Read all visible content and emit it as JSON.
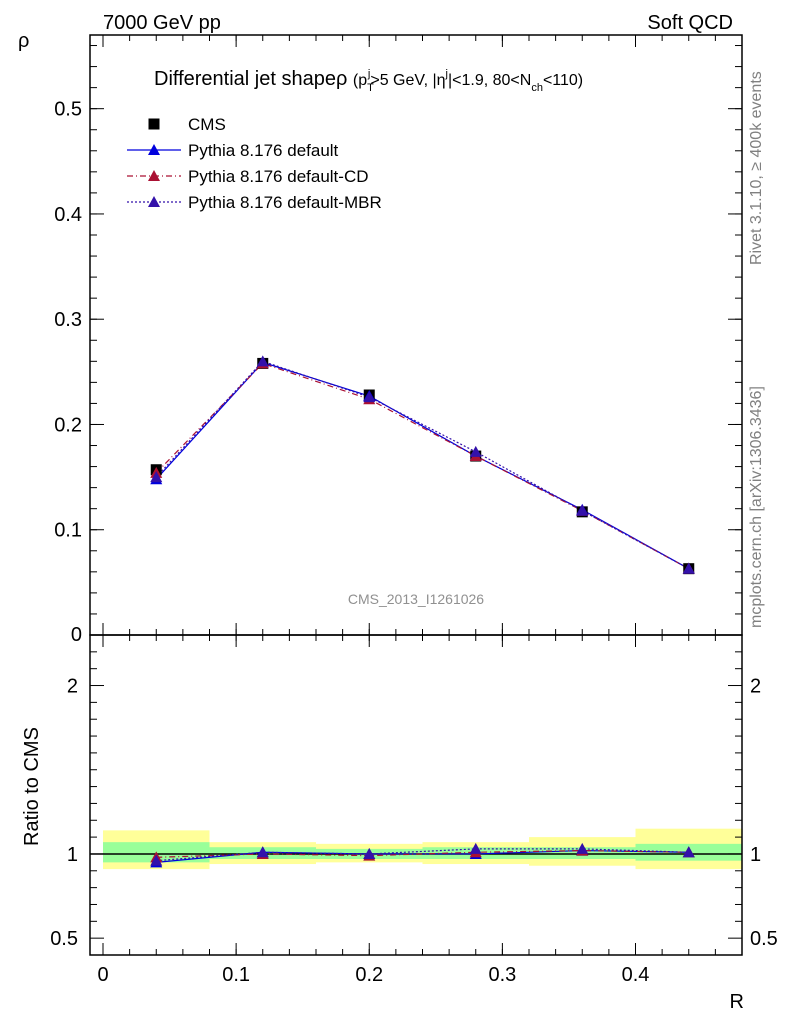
{
  "header": {
    "left": "7000 GeV pp",
    "right": "Soft QCD"
  },
  "side_labels": {
    "rivet": "Rivet 3.1.10, ≥ 400k events",
    "mcplots": "mcplots.cern.ch [arXiv:1306.3436]"
  },
  "chart_data": {
    "type": "line",
    "title": "Differential jet shape ρ (p_T^j>5 GeV, |η^j|<1.9, 80<N_ch<110)",
    "title_parts": {
      "main": "Differential jet shape",
      "rho": "ρ",
      "open": "(p",
      "sub_t": "T",
      "sup_j1": "j",
      "mid1": ">5 GeV, |η",
      "sup_j2": "j",
      "mid2": "|<1.9, 80<N",
      "sub_ch": "ch",
      "end": "<110)"
    },
    "analysis_id": "CMS_2013_I1261026",
    "xlabel": "R",
    "ylabel": "ρ",
    "ratio_ylabel": "Ratio to CMS",
    "xlim": [
      0,
      0.48
    ],
    "ylim": [
      0,
      0.57
    ],
    "ratio_ylim": [
      0.4,
      2.3
    ],
    "x_ticks": [
      0,
      0.1,
      0.2,
      0.3,
      0.4
    ],
    "x_tick_labels": [
      "0",
      "0.1",
      "0.2",
      "0.3",
      "0.4"
    ],
    "y_ticks": [
      0.1,
      0.2,
      0.3,
      0.4,
      0.5
    ],
    "y_tick_labels": [
      "0.1",
      "0.2",
      "0.3",
      "0.4",
      "0.5"
    ],
    "y_zero_label": "0",
    "ratio_ticks": [
      0.5,
      1,
      2
    ],
    "ratio_tick_labels": [
      "0.5",
      "1",
      "2"
    ],
    "bin_edges": [
      0,
      0.08,
      0.16,
      0.24,
      0.32,
      0.4,
      0.48
    ],
    "x": [
      0.04,
      0.12,
      0.2,
      0.28,
      0.36,
      0.44
    ],
    "series": [
      {
        "name": "CMS",
        "marker": "square",
        "color": "#000000",
        "style": "none",
        "values": [
          0.157,
          0.258,
          0.228,
          0.17,
          0.117,
          0.063
        ]
      },
      {
        "name": "Pythia 8.176 default",
        "marker": "triangle",
        "color": "#0000dd",
        "style": "solid",
        "values": [
          0.148,
          0.259,
          0.227,
          0.17,
          0.119,
          0.063
        ],
        "ratio": [
          0.95,
          1.01,
          1.0,
          1.0,
          1.02,
          1.01
        ]
      },
      {
        "name": "Pythia 8.176 default-CD",
        "marker": "triangle",
        "color": "#aa1133",
        "style": "dashdot",
        "values": [
          0.154,
          0.258,
          0.224,
          0.17,
          0.118,
          0.063
        ],
        "ratio": [
          0.98,
          1.0,
          0.99,
          1.01,
          1.02,
          1.01
        ]
      },
      {
        "name": "Pythia 8.176 default-MBR",
        "marker": "triangle",
        "color": "#3311aa",
        "style": "dotted",
        "values": [
          0.15,
          0.26,
          0.226,
          0.174,
          0.118,
          0.063
        ],
        "ratio": [
          0.96,
          1.01,
          1.0,
          1.03,
          1.03,
          1.01
        ]
      }
    ],
    "bands": {
      "yellow": {
        "color": "#ffff99",
        "lo": [
          0.91,
          0.94,
          0.95,
          0.94,
          0.93,
          0.91
        ],
        "hi": [
          1.14,
          1.07,
          1.06,
          1.07,
          1.1,
          1.15
        ]
      },
      "green": {
        "color": "#99ff99",
        "lo": [
          0.95,
          0.97,
          0.97,
          0.97,
          0.97,
          0.96
        ],
        "hi": [
          1.07,
          1.04,
          1.03,
          1.04,
          1.04,
          1.06
        ]
      }
    }
  }
}
